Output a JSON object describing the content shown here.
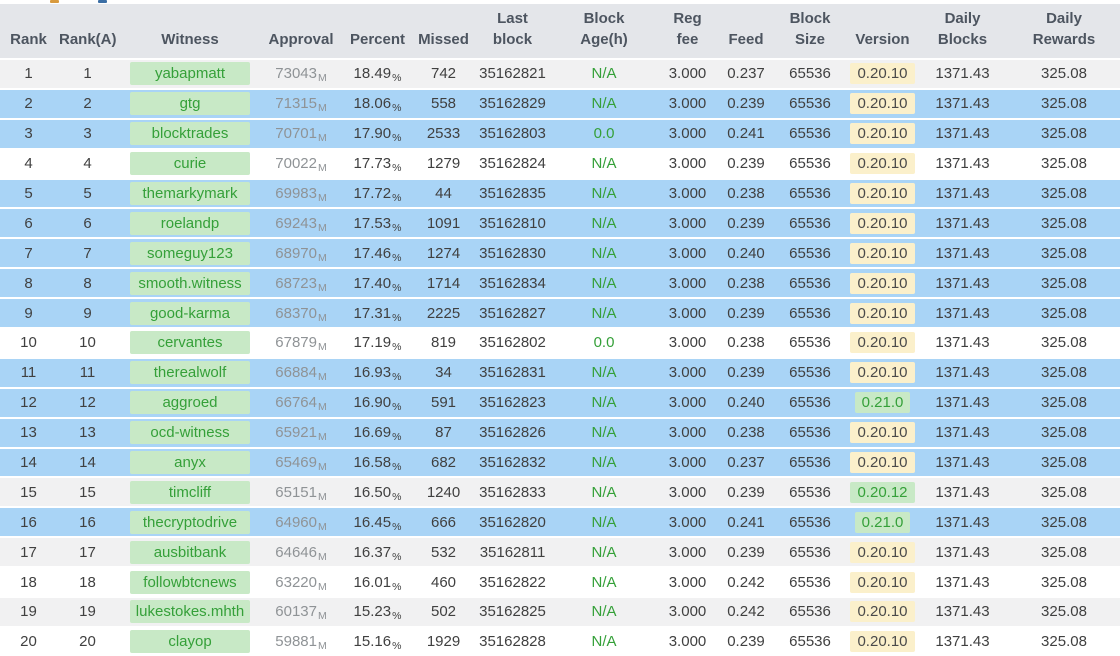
{
  "colors": {
    "header_bg": "#e4e6ea",
    "header_text": "#4d5560",
    "row_highlight_blue": "#a9d4f6",
    "row_stripe_gray": "#f1f1f2",
    "witness_badge_bg": "#c8e9c6",
    "green_text": "#35a039",
    "version_badge_yellow_bg": "#fbf0cb",
    "body_text": "#404040",
    "approval_text": "#8f9396"
  },
  "table": {
    "columns": [
      {
        "key": "rank",
        "label": "Rank"
      },
      {
        "key": "rank_a",
        "label": "Rank(A)"
      },
      {
        "key": "witness",
        "label": "Witness"
      },
      {
        "key": "approval",
        "label": "Approval"
      },
      {
        "key": "percent",
        "label": "Percent"
      },
      {
        "key": "missed",
        "label": "Missed"
      },
      {
        "key": "last_block",
        "label": "Last\nblock"
      },
      {
        "key": "block_age",
        "label": "Block\nAge(h)"
      },
      {
        "key": "reg_fee",
        "label": "Reg\nfee"
      },
      {
        "key": "feed",
        "label": "Feed"
      },
      {
        "key": "block_size",
        "label": "Block\nSize"
      },
      {
        "key": "version",
        "label": "Version"
      },
      {
        "key": "daily_blocks",
        "label": "Daily\nBlocks"
      },
      {
        "key": "daily_rewards",
        "label": "Daily\nRewards"
      }
    ],
    "approval_unit": "M",
    "percent_unit": "%",
    "rows": [
      {
        "rank": "1",
        "rank_a": "1",
        "witness": "yabapmatt",
        "approval": "73043",
        "percent": "18.49",
        "missed": "742",
        "last_block": "35162821",
        "block_age": "N/A",
        "reg_fee": "3.000",
        "feed": "0.237",
        "block_size": "65536",
        "version": "0.20.10",
        "version_style": "yellow",
        "daily_blocks": "1371.43",
        "daily_rewards": "325.08",
        "row_style": "gray"
      },
      {
        "rank": "2",
        "rank_a": "2",
        "witness": "gtg",
        "approval": "71315",
        "percent": "18.06",
        "missed": "558",
        "last_block": "35162829",
        "block_age": "N/A",
        "reg_fee": "3.000",
        "feed": "0.239",
        "block_size": "65536",
        "version": "0.20.10",
        "version_style": "yellow",
        "daily_blocks": "1371.43",
        "daily_rewards": "325.08",
        "row_style": "blue"
      },
      {
        "rank": "3",
        "rank_a": "3",
        "witness": "blocktrades",
        "approval": "70701",
        "percent": "17.90",
        "missed": "2533",
        "last_block": "35162803",
        "block_age": "0.0",
        "reg_fee": "3.000",
        "feed": "0.241",
        "block_size": "65536",
        "version": "0.20.10",
        "version_style": "yellow",
        "daily_blocks": "1371.43",
        "daily_rewards": "325.08",
        "row_style": "blue"
      },
      {
        "rank": "4",
        "rank_a": "4",
        "witness": "curie",
        "approval": "70022",
        "percent": "17.73",
        "missed": "1279",
        "last_block": "35162824",
        "block_age": "N/A",
        "reg_fee": "3.000",
        "feed": "0.239",
        "block_size": "65536",
        "version": "0.20.10",
        "version_style": "yellow",
        "daily_blocks": "1371.43",
        "daily_rewards": "325.08",
        "row_style": "white"
      },
      {
        "rank": "5",
        "rank_a": "5",
        "witness": "themarkymark",
        "approval": "69983",
        "percent": "17.72",
        "missed": "44",
        "last_block": "35162835",
        "block_age": "N/A",
        "reg_fee": "3.000",
        "feed": "0.238",
        "block_size": "65536",
        "version": "0.20.10",
        "version_style": "yellow",
        "daily_blocks": "1371.43",
        "daily_rewards": "325.08",
        "row_style": "blue"
      },
      {
        "rank": "6",
        "rank_a": "6",
        "witness": "roelandp",
        "approval": "69243",
        "percent": "17.53",
        "missed": "1091",
        "last_block": "35162810",
        "block_age": "N/A",
        "reg_fee": "3.000",
        "feed": "0.239",
        "block_size": "65536",
        "version": "0.20.10",
        "version_style": "yellow",
        "daily_blocks": "1371.43",
        "daily_rewards": "325.08",
        "row_style": "blue"
      },
      {
        "rank": "7",
        "rank_a": "7",
        "witness": "someguy123",
        "approval": "68970",
        "percent": "17.46",
        "missed": "1274",
        "last_block": "35162830",
        "block_age": "N/A",
        "reg_fee": "3.000",
        "feed": "0.240",
        "block_size": "65536",
        "version": "0.20.10",
        "version_style": "yellow",
        "daily_blocks": "1371.43",
        "daily_rewards": "325.08",
        "row_style": "blue"
      },
      {
        "rank": "8",
        "rank_a": "8",
        "witness": "smooth.witness",
        "approval": "68723",
        "percent": "17.40",
        "missed": "1714",
        "last_block": "35162834",
        "block_age": "N/A",
        "reg_fee": "3.000",
        "feed": "0.238",
        "block_size": "65536",
        "version": "0.20.10",
        "version_style": "yellow",
        "daily_blocks": "1371.43",
        "daily_rewards": "325.08",
        "row_style": "blue"
      },
      {
        "rank": "9",
        "rank_a": "9",
        "witness": "good-karma",
        "approval": "68370",
        "percent": "17.31",
        "missed": "2225",
        "last_block": "35162827",
        "block_age": "N/A",
        "reg_fee": "3.000",
        "feed": "0.239",
        "block_size": "65536",
        "version": "0.20.10",
        "version_style": "yellow",
        "daily_blocks": "1371.43",
        "daily_rewards": "325.08",
        "row_style": "blue"
      },
      {
        "rank": "10",
        "rank_a": "10",
        "witness": "cervantes",
        "approval": "67879",
        "percent": "17.19",
        "missed": "819",
        "last_block": "35162802",
        "block_age": "0.0",
        "reg_fee": "3.000",
        "feed": "0.238",
        "block_size": "65536",
        "version": "0.20.10",
        "version_style": "yellow",
        "daily_blocks": "1371.43",
        "daily_rewards": "325.08",
        "row_style": "white"
      },
      {
        "rank": "11",
        "rank_a": "11",
        "witness": "therealwolf",
        "approval": "66884",
        "percent": "16.93",
        "missed": "34",
        "last_block": "35162831",
        "block_age": "N/A",
        "reg_fee": "3.000",
        "feed": "0.239",
        "block_size": "65536",
        "version": "0.20.10",
        "version_style": "yellow",
        "daily_blocks": "1371.43",
        "daily_rewards": "325.08",
        "row_style": "blue"
      },
      {
        "rank": "12",
        "rank_a": "12",
        "witness": "aggroed",
        "approval": "66764",
        "percent": "16.90",
        "missed": "591",
        "last_block": "35162823",
        "block_age": "N/A",
        "reg_fee": "3.000",
        "feed": "0.240",
        "block_size": "65536",
        "version": "0.21.0",
        "version_style": "green",
        "daily_blocks": "1371.43",
        "daily_rewards": "325.08",
        "row_style": "blue"
      },
      {
        "rank": "13",
        "rank_a": "13",
        "witness": "ocd-witness",
        "approval": "65921",
        "percent": "16.69",
        "missed": "87",
        "last_block": "35162826",
        "block_age": "N/A",
        "reg_fee": "3.000",
        "feed": "0.238",
        "block_size": "65536",
        "version": "0.20.10",
        "version_style": "yellow",
        "daily_blocks": "1371.43",
        "daily_rewards": "325.08",
        "row_style": "blue"
      },
      {
        "rank": "14",
        "rank_a": "14",
        "witness": "anyx",
        "approval": "65469",
        "percent": "16.58",
        "missed": "682",
        "last_block": "35162832",
        "block_age": "N/A",
        "reg_fee": "3.000",
        "feed": "0.237",
        "block_size": "65536",
        "version": "0.20.10",
        "version_style": "yellow",
        "daily_blocks": "1371.43",
        "daily_rewards": "325.08",
        "row_style": "blue"
      },
      {
        "rank": "15",
        "rank_a": "15",
        "witness": "timcliff",
        "approval": "65151",
        "percent": "16.50",
        "missed": "1240",
        "last_block": "35162833",
        "block_age": "N/A",
        "reg_fee": "3.000",
        "feed": "0.239",
        "block_size": "65536",
        "version": "0.20.12",
        "version_style": "green",
        "daily_blocks": "1371.43",
        "daily_rewards": "325.08",
        "row_style": "gray"
      },
      {
        "rank": "16",
        "rank_a": "16",
        "witness": "thecryptodrive",
        "approval": "64960",
        "percent": "16.45",
        "missed": "666",
        "last_block": "35162820",
        "block_age": "N/A",
        "reg_fee": "3.000",
        "feed": "0.241",
        "block_size": "65536",
        "version": "0.21.0",
        "version_style": "green",
        "daily_blocks": "1371.43",
        "daily_rewards": "325.08",
        "row_style": "blue"
      },
      {
        "rank": "17",
        "rank_a": "17",
        "witness": "ausbitbank",
        "approval": "64646",
        "percent": "16.37",
        "missed": "532",
        "last_block": "35162811",
        "block_age": "N/A",
        "reg_fee": "3.000",
        "feed": "0.239",
        "block_size": "65536",
        "version": "0.20.10",
        "version_style": "yellow",
        "daily_blocks": "1371.43",
        "daily_rewards": "325.08",
        "row_style": "gray"
      },
      {
        "rank": "18",
        "rank_a": "18",
        "witness": "followbtcnews",
        "approval": "63220",
        "percent": "16.01",
        "missed": "460",
        "last_block": "35162822",
        "block_age": "N/A",
        "reg_fee": "3.000",
        "feed": "0.242",
        "block_size": "65536",
        "version": "0.20.10",
        "version_style": "yellow",
        "daily_blocks": "1371.43",
        "daily_rewards": "325.08",
        "row_style": "white"
      },
      {
        "rank": "19",
        "rank_a": "19",
        "witness": "lukestokes.mhth",
        "approval": "60137",
        "percent": "15.23",
        "missed": "502",
        "last_block": "35162825",
        "block_age": "N/A",
        "reg_fee": "3.000",
        "feed": "0.242",
        "block_size": "65536",
        "version": "0.20.10",
        "version_style": "yellow",
        "daily_blocks": "1371.43",
        "daily_rewards": "325.08",
        "row_style": "gray"
      },
      {
        "rank": "20",
        "rank_a": "20",
        "witness": "clayop",
        "approval": "59881",
        "percent": "15.16",
        "missed": "1929",
        "last_block": "35162828",
        "block_age": "N/A",
        "reg_fee": "3.000",
        "feed": "0.239",
        "block_size": "65536",
        "version": "0.20.10",
        "version_style": "yellow",
        "daily_blocks": "1371.43",
        "daily_rewards": "325.08",
        "row_style": "white"
      }
    ]
  }
}
